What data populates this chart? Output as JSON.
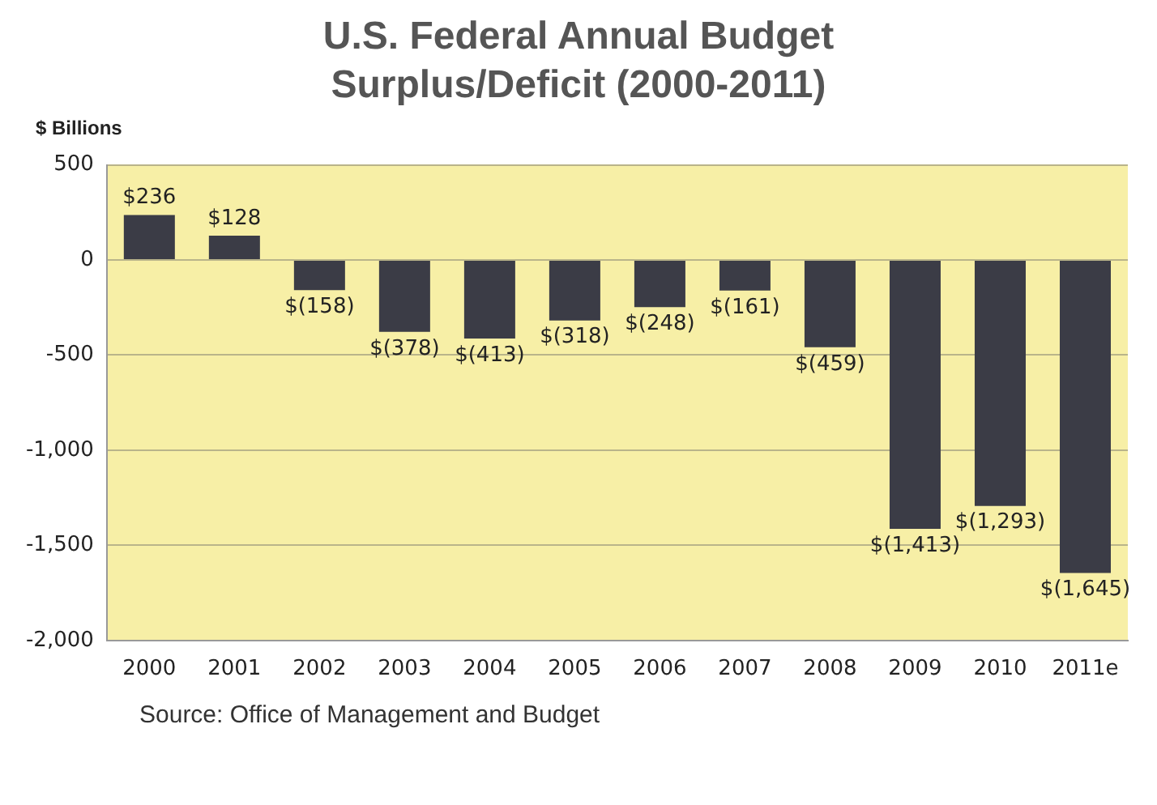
{
  "chart_data": {
    "type": "bar",
    "title": "U.S. Federal Annual Budget Surplus/Deficit (2000-2011)",
    "ylabel": "$ Billions",
    "categories": [
      "2000",
      "2001",
      "2002",
      "2003",
      "2004",
      "2005",
      "2006",
      "2007",
      "2008",
      "2009",
      "2010",
      "2011e"
    ],
    "values": [
      236,
      128,
      -158,
      -378,
      -413,
      -318,
      -248,
      -161,
      -459,
      -1413,
      -1293,
      -1645
    ],
    "value_labels": [
      "$236",
      "$128",
      "$(158)",
      "$(378)",
      "$(413)",
      "$(318)",
      "$(248)",
      "$(161)",
      "$(459)",
      "$(1,413)",
      "$(1,293)",
      "$(1,645)"
    ],
    "color": "#3b3c46",
    "ylim": [
      -2000,
      500
    ],
    "yticks": [
      {
        "value": -2000,
        "label": "-2,000"
      },
      {
        "value": -1500,
        "label": "-1,500"
      },
      {
        "value": -1000,
        "label": "-1,000"
      },
      -500,
      0,
      500
    ],
    "grid": "y",
    "legend": false,
    "annotations": [
      "Source: Office of Management and Budget"
    ]
  }
}
